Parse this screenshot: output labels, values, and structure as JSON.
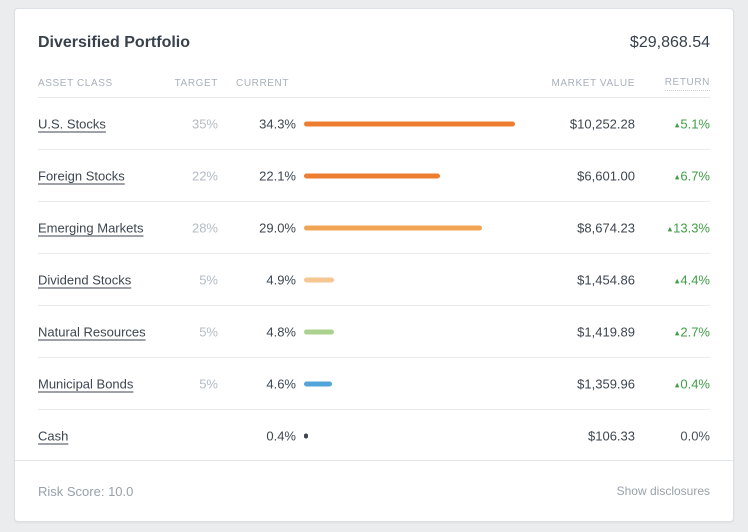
{
  "card": {
    "title": "Diversified Portfolio",
    "total_value": "$29,868.54"
  },
  "table": {
    "columns": {
      "asset_class": "ASSET CLASS",
      "target": "TARGET",
      "current": "CURRENT",
      "market_value": "MARKET VALUE",
      "return": "RETURN"
    },
    "rows": [
      {
        "asset_class": "U.S. Stocks",
        "target": "35%",
        "current": "34.3%",
        "current_pct": 34.3,
        "bar_color": "#ee7d2f",
        "market_value": "$10,252.28",
        "return": "5.1%",
        "return_direction": "up"
      },
      {
        "asset_class": "Foreign Stocks",
        "target": "22%",
        "current": "22.1%",
        "current_pct": 22.1,
        "bar_color": "#ee7d2f",
        "market_value": "$6,601.00",
        "return": "6.7%",
        "return_direction": "up"
      },
      {
        "asset_class": "Emerging Markets",
        "target": "28%",
        "current": "29.0%",
        "current_pct": 29.0,
        "bar_color": "#f2a455",
        "market_value": "$8,674.23",
        "return": "13.3%",
        "return_direction": "up"
      },
      {
        "asset_class": "Dividend Stocks",
        "target": "5%",
        "current": "4.9%",
        "current_pct": 4.9,
        "bar_color": "#f6c693",
        "market_value": "$1,454.86",
        "return": "4.4%",
        "return_direction": "up"
      },
      {
        "asset_class": "Natural Resources",
        "target": "5%",
        "current": "4.8%",
        "current_pct": 4.8,
        "bar_color": "#abd18f",
        "market_value": "$1,419.89",
        "return": "2.7%",
        "return_direction": "up"
      },
      {
        "asset_class": "Municipal Bonds",
        "target": "5%",
        "current": "4.6%",
        "current_pct": 4.6,
        "bar_color": "#51a5d9",
        "market_value": "$1,359.96",
        "return": "0.4%",
        "return_direction": "up"
      },
      {
        "asset_class": "Cash",
        "target": "",
        "current": "0.4%",
        "current_pct": 0.4,
        "bar_color": "#3f4352",
        "market_value": "$106.33",
        "return": "0.0%",
        "return_direction": "none"
      }
    ]
  },
  "footer": {
    "risk_score_label": "Risk Score: 10.0",
    "disclosures_label": "Show disclosures"
  },
  "icons": {
    "up_arrow": "▴"
  },
  "colors": {
    "return_up_green": "#3f9e46",
    "return_neutral": "#4a525c",
    "primary_orange": "#ee7d2f"
  }
}
